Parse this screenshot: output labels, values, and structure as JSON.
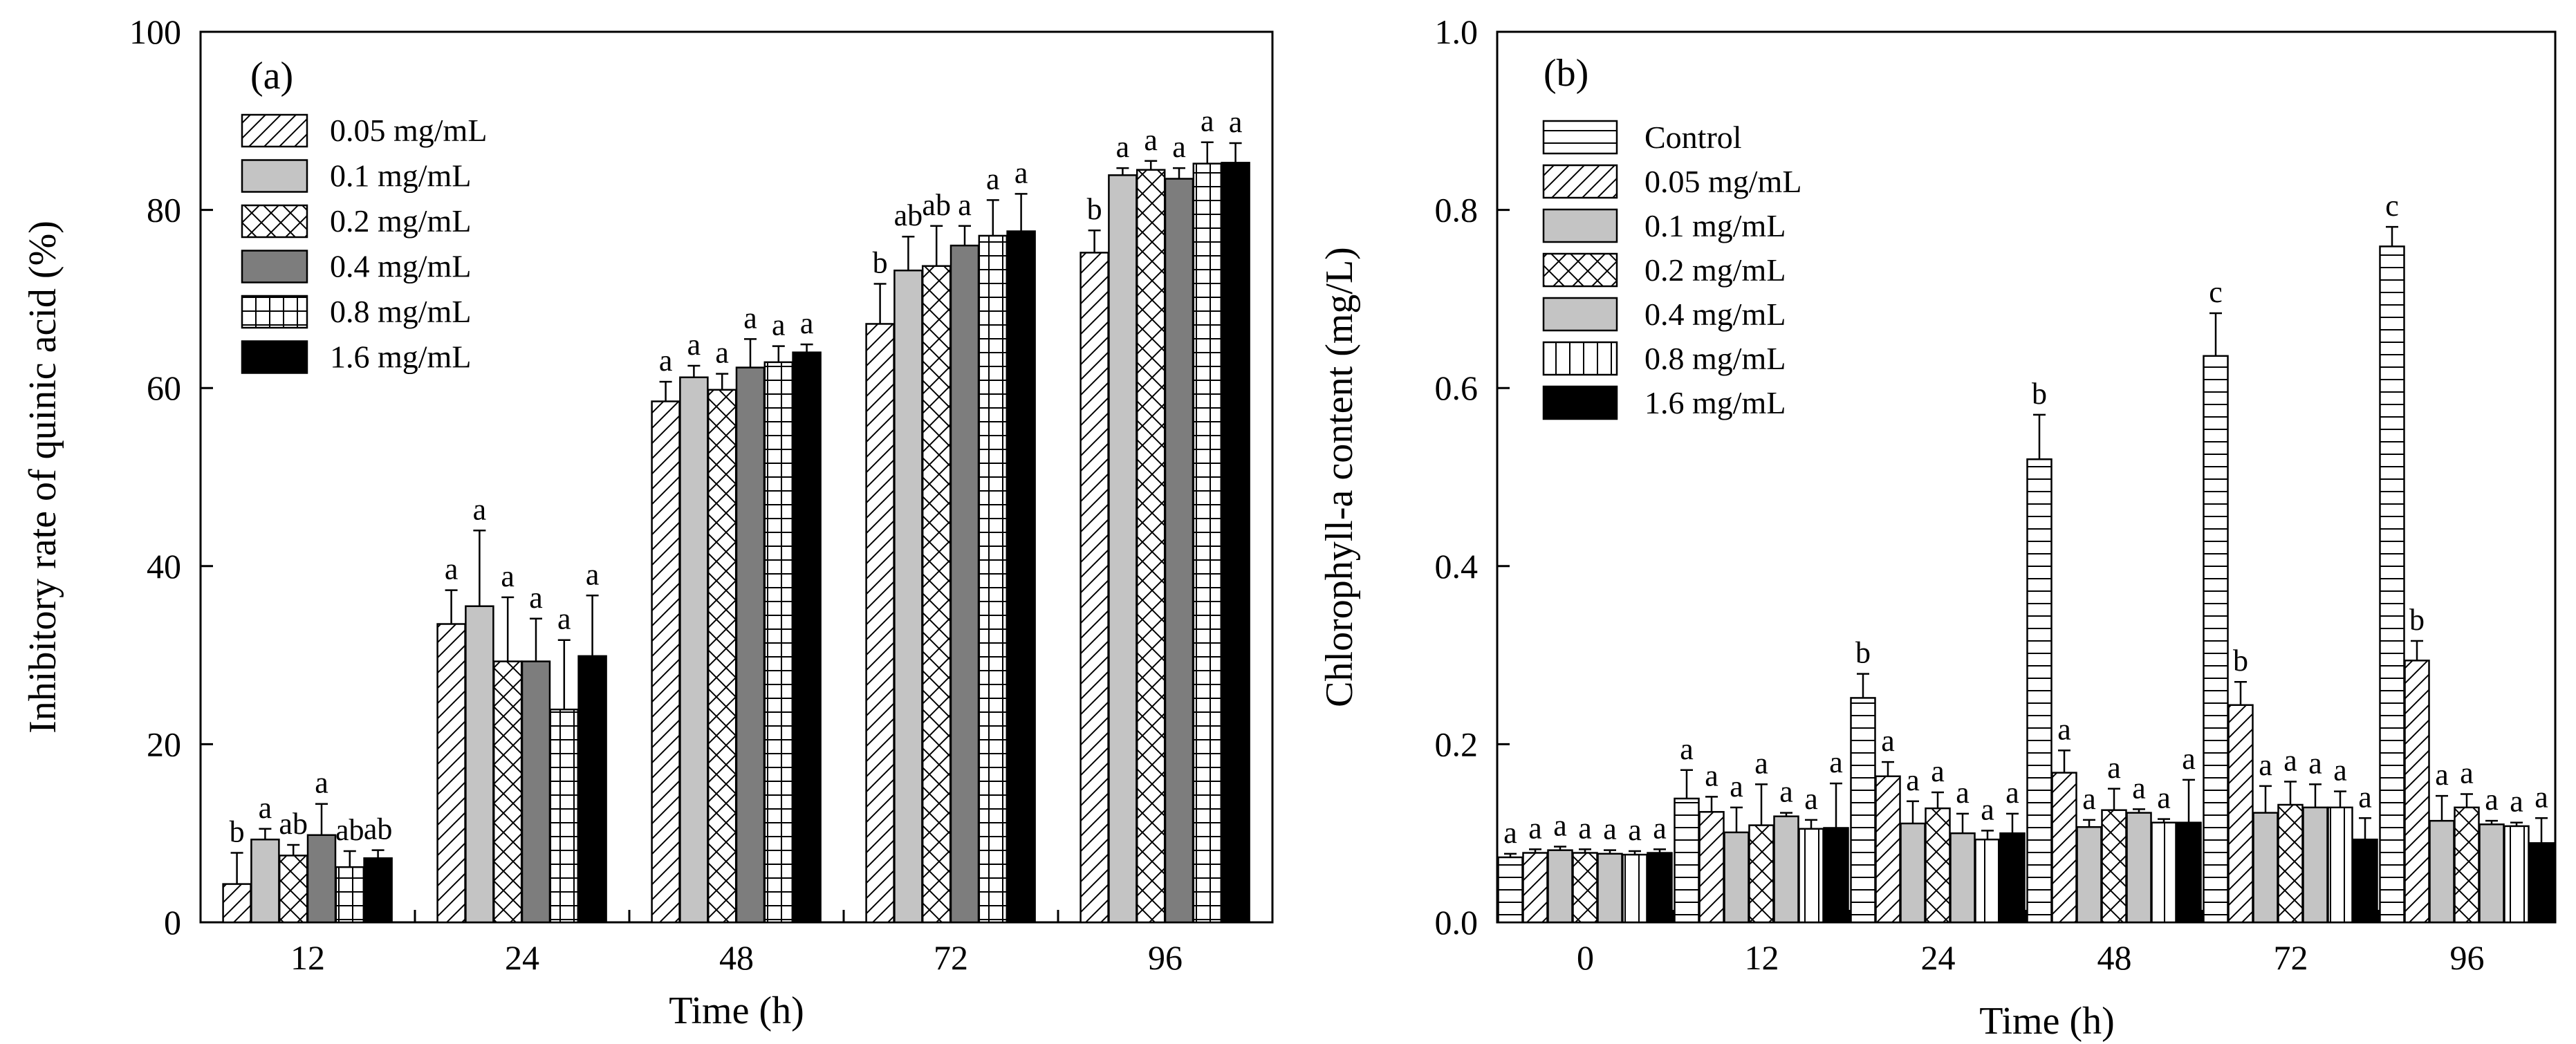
{
  "chart_data": [
    {
      "type": "bar",
      "panel_label": "(a)",
      "title": "",
      "xlabel": "Time (h)",
      "ylabel": "Inhibitory rate of quinic acid (%)",
      "ylim": [
        0,
        100
      ],
      "yticks": [
        "0",
        "20",
        "40",
        "60",
        "80",
        "100"
      ],
      "categories": [
        "12",
        "24",
        "48",
        "72",
        "96"
      ],
      "legend_position": "top-left",
      "series": [
        {
          "name": "0.05 mg/mL",
          "pattern": "diag",
          "values": [
            4.3,
            33.5,
            58.5,
            67.2,
            75.2
          ],
          "errors": [
            3.5,
            3.8,
            2.2,
            4.5,
            2.5
          ],
          "letters": [
            "b",
            "a",
            "a",
            "b",
            "b"
          ]
        },
        {
          "name": "0.1 mg/mL",
          "pattern": "lightgray",
          "values": [
            9.3,
            35.5,
            61.2,
            73.2,
            83.9
          ],
          "errors": [
            1.2,
            8.5,
            1.3,
            3.8,
            0.8
          ],
          "letters": [
            "a",
            "a",
            "a",
            "ab",
            "a"
          ]
        },
        {
          "name": "0.2 mg/mL",
          "pattern": "cross",
          "values": [
            7.5,
            29.3,
            59.8,
            73.7,
            84.5
          ],
          "errors": [
            1.2,
            7.2,
            1.8,
            4.5,
            1.0
          ],
          "letters": [
            "ab",
            "a",
            "a",
            "ab",
            "a"
          ]
        },
        {
          "name": "0.4 mg/mL",
          "pattern": "darkgray",
          "values": [
            9.8,
            29.3,
            62.3,
            76.0,
            83.5
          ],
          "errors": [
            3.5,
            4.8,
            3.2,
            2.2,
            1.2
          ],
          "letters": [
            "a",
            "a",
            "a",
            "a",
            "a"
          ]
        },
        {
          "name": "0.8 mg/mL",
          "pattern": "grid",
          "values": [
            6.2,
            23.9,
            62.9,
            77.1,
            85.2
          ],
          "errors": [
            1.8,
            7.8,
            1.8,
            4.0,
            2.4
          ],
          "letters": [
            "ab",
            "a",
            "a",
            "a",
            "a"
          ]
        },
        {
          "name": "1.6 mg/mL",
          "pattern": "black",
          "values": [
            7.2,
            29.9,
            64.0,
            77.6,
            85.3
          ],
          "errors": [
            0.9,
            6.8,
            0.9,
            4.2,
            2.2
          ],
          "letters": [
            "ab",
            "a",
            "a",
            "a",
            "a"
          ]
        }
      ]
    },
    {
      "type": "bar",
      "panel_label": "(b)",
      "title": "",
      "xlabel": "Time (h)",
      "ylabel": "Chlorophyll-a content (mg/L)",
      "ylim": [
        0,
        1.0
      ],
      "yticks": [
        "0.0",
        "0.2",
        "0.4",
        "0.6",
        "0.8",
        "1.0"
      ],
      "categories": [
        "0",
        "12",
        "24",
        "48",
        "72",
        "96"
      ],
      "legend_position": "top-left",
      "series": [
        {
          "name": "Control",
          "pattern": "hlines",
          "values": [
            0.073,
            0.139,
            0.252,
            0.52,
            0.636,
            0.759
          ],
          "errors": [
            0.004,
            0.032,
            0.027,
            0.05,
            0.048,
            0.022
          ],
          "letters": [
            "a",
            "a",
            "b",
            "b",
            "c",
            "c"
          ]
        },
        {
          "name": "0.05 mg/mL",
          "pattern": "diag",
          "values": [
            0.078,
            0.124,
            0.164,
            0.168,
            0.244,
            0.294
          ],
          "errors": [
            0.004,
            0.017,
            0.016,
            0.025,
            0.026,
            0.022
          ],
          "letters": [
            "a",
            "a",
            "a",
            "a",
            "b",
            "b"
          ]
        },
        {
          "name": "0.1 mg/mL",
          "pattern": "lightgray",
          "values": [
            0.081,
            0.101,
            0.111,
            0.107,
            0.123,
            0.114
          ],
          "errors": [
            0.004,
            0.028,
            0.025,
            0.008,
            0.03,
            0.028
          ],
          "letters": [
            "a",
            "a",
            "a",
            "a",
            "a",
            "a"
          ]
        },
        {
          "name": "0.2 mg/mL",
          "pattern": "cross",
          "values": [
            0.078,
            0.109,
            0.128,
            0.126,
            0.132,
            0.129
          ],
          "errors": [
            0.004,
            0.046,
            0.018,
            0.024,
            0.026,
            0.015
          ],
          "letters": [
            "a",
            "a",
            "a",
            "a",
            "a",
            "a"
          ]
        },
        {
          "name": "0.4 mg/mL",
          "pattern": "lightgray",
          "values": [
            0.077,
            0.119,
            0.1,
            0.123,
            0.129,
            0.11
          ],
          "errors": [
            0.004,
            0.004,
            0.022,
            0.004,
            0.026,
            0.004
          ],
          "letters": [
            "a",
            "a",
            "a",
            "a",
            "a",
            "a"
          ]
        },
        {
          "name": "0.8 mg/mL",
          "pattern": "vlines",
          "values": [
            0.076,
            0.105,
            0.093,
            0.112,
            0.129,
            0.108
          ],
          "errors": [
            0.004,
            0.01,
            0.01,
            0.004,
            0.018,
            0.004
          ],
          "letters": [
            "a",
            "a",
            "a",
            "a",
            "a",
            "a"
          ]
        },
        {
          "name": "1.6 mg/mL",
          "pattern": "black",
          "values": [
            0.078,
            0.106,
            0.1,
            0.112,
            0.093,
            0.089
          ],
          "errors": [
            0.004,
            0.05,
            0.022,
            0.048,
            0.024,
            0.028
          ],
          "letters": [
            "a",
            "a",
            "a",
            "a",
            "a",
            "a"
          ]
        }
      ]
    }
  ]
}
